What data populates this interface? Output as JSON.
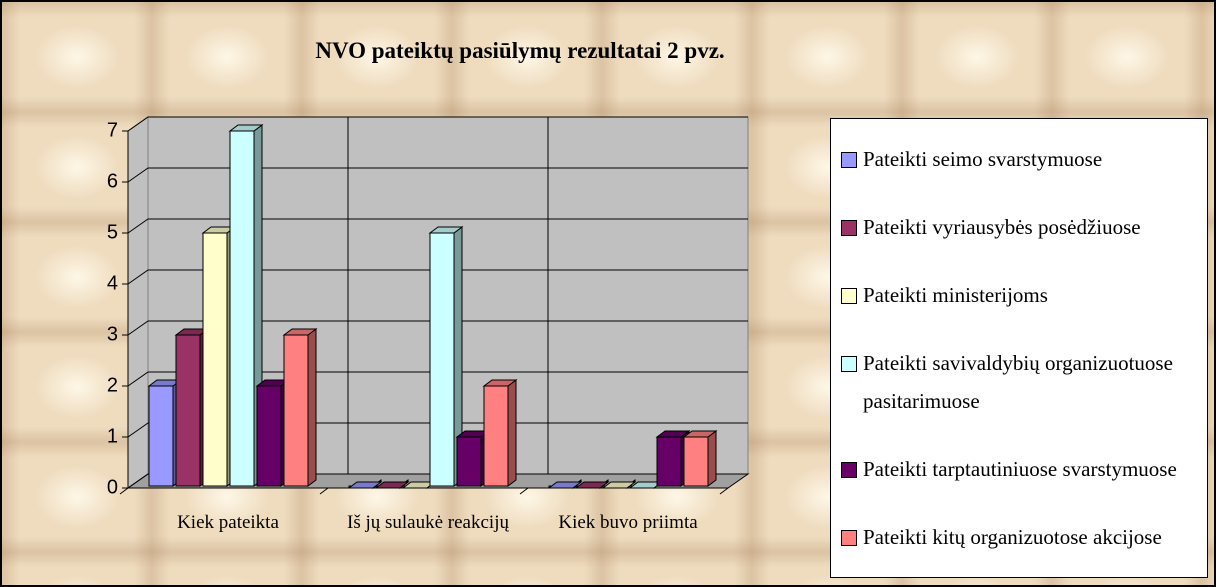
{
  "chart_data": {
    "type": "bar3d",
    "title": "NVO pateiktų pasiūlymų rezultatai 2 pvz.",
    "categories": [
      "Kiek pateikta",
      "Iš jų sulaukė reakcijų",
      "Kiek buvo priimta"
    ],
    "series": [
      {
        "name": "Pateikti seimo svarstymuose",
        "color": "#9999ff",
        "values": [
          2,
          0,
          0
        ]
      },
      {
        "name": "Pateikti vyriausybės posėdžiuose",
        "color": "#993366",
        "values": [
          3,
          0,
          0
        ]
      },
      {
        "name": "Pateikti ministerijoms",
        "color": "#ffffcc",
        "values": [
          5,
          0,
          0
        ]
      },
      {
        "name": "Pateikti savivaldybių organizuotuose pasitarimuose",
        "color": "#ccffff",
        "values": [
          7,
          5,
          0
        ]
      },
      {
        "name": "Pateikti tarptautiniuose svarstymuose",
        "color": "#660066",
        "values": [
          2,
          1,
          1
        ]
      },
      {
        "name": "Pateikti kitų organizuotose akcijose",
        "color": "#ff8080",
        "values": [
          3,
          2,
          1
        ]
      }
    ],
    "ylim": [
      0,
      7
    ],
    "yticks": [
      0,
      1,
      2,
      3,
      4,
      5,
      6,
      7
    ],
    "grid": true,
    "legend": "right"
  }
}
